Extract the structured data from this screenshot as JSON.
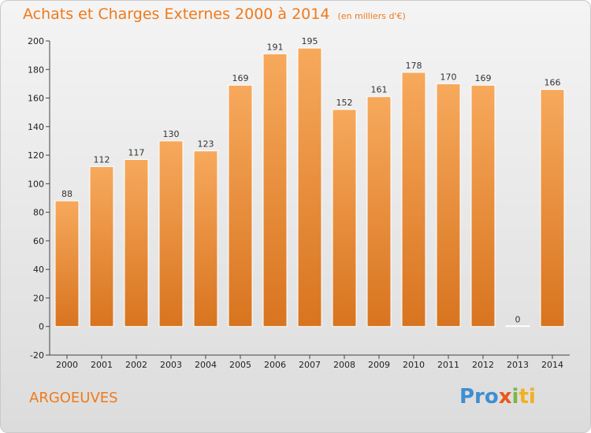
{
  "title": "Achats et Charges Externes 2000 à 2014",
  "subtitle": "(en milliers d'€)",
  "place": "ARGOEUVES",
  "logo": {
    "p1": "Pro",
    "p2": "x",
    "p3": "i",
    "p4": "ti"
  },
  "colors": {
    "bar_top": "#f7a95c",
    "bar_bottom": "#d8741f",
    "title": "#f07a1a"
  },
  "chart_data": {
    "type": "bar",
    "title": "Achats et Charges Externes 2000 à 2014",
    "subtitle": "(en milliers d'€)",
    "xlabel": "",
    "ylabel": "",
    "ylim": [
      -20,
      200
    ],
    "yticks": [
      -20,
      0,
      20,
      40,
      60,
      80,
      100,
      120,
      140,
      160,
      180,
      200
    ],
    "grid": false,
    "categories": [
      "2000",
      "2001",
      "2002",
      "2003",
      "2004",
      "2005",
      "2006",
      "2007",
      "2008",
      "2009",
      "2010",
      "2011",
      "2012",
      "2013",
      "2014"
    ],
    "values": [
      88,
      112,
      117,
      130,
      123,
      169,
      191,
      195,
      152,
      161,
      178,
      170,
      169,
      0,
      166
    ]
  }
}
